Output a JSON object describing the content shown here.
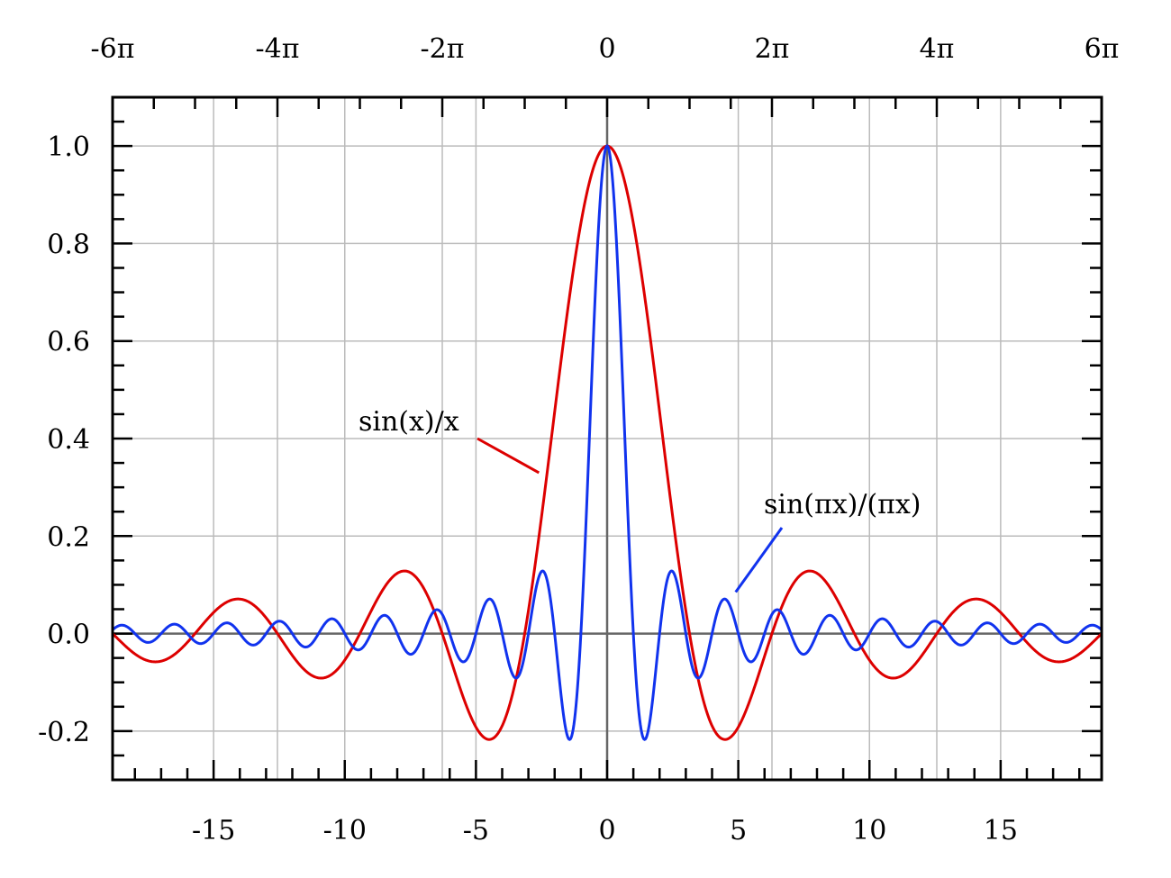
{
  "chart_data": {
    "type": "line",
    "title": "",
    "xlabel": "",
    "ylabel": "",
    "xlim": [
      -18.85,
      18.85
    ],
    "ylim": [
      -0.3,
      1.1
    ],
    "grid": true,
    "x_ticks": [
      -15,
      -10,
      -5,
      0,
      5,
      10,
      15
    ],
    "x_tick_labels": [
      "-15",
      "-10",
      "-5",
      "0",
      "5",
      "10",
      "15"
    ],
    "x_top_ticks": [
      -18.8496,
      -12.5664,
      -6.2832,
      0,
      6.2832,
      12.5664,
      18.8496
    ],
    "x_top_tick_labels": [
      "-6π",
      "-4π",
      "-2π",
      "0",
      "2π",
      "4π",
      "6π"
    ],
    "y_ticks": [
      -0.2,
      0.0,
      0.2,
      0.4,
      0.6,
      0.8,
      1.0
    ],
    "y_tick_labels": [
      "-0.2",
      "0.0",
      "0.2",
      "0.4",
      "0.6",
      "0.8",
      "1.0"
    ],
    "series": [
      {
        "name": "sin(x)/x",
        "function": "sin(x)/x",
        "color": "#dd0000",
        "label_anchor": {
          "x": -2.6,
          "y": 0.33
        }
      },
      {
        "name": "sin(πx)/(πx)",
        "function": "sin(pi*x)/(pi*x)",
        "color": "#1133ee",
        "label_anchor": {
          "x": 4.9,
          "y": 0.085
        }
      }
    ],
    "annotations": [
      {
        "text": "sin(x)/x",
        "series": 0
      },
      {
        "text": "sin(πx)/(πx)",
        "series": 1
      }
    ]
  }
}
